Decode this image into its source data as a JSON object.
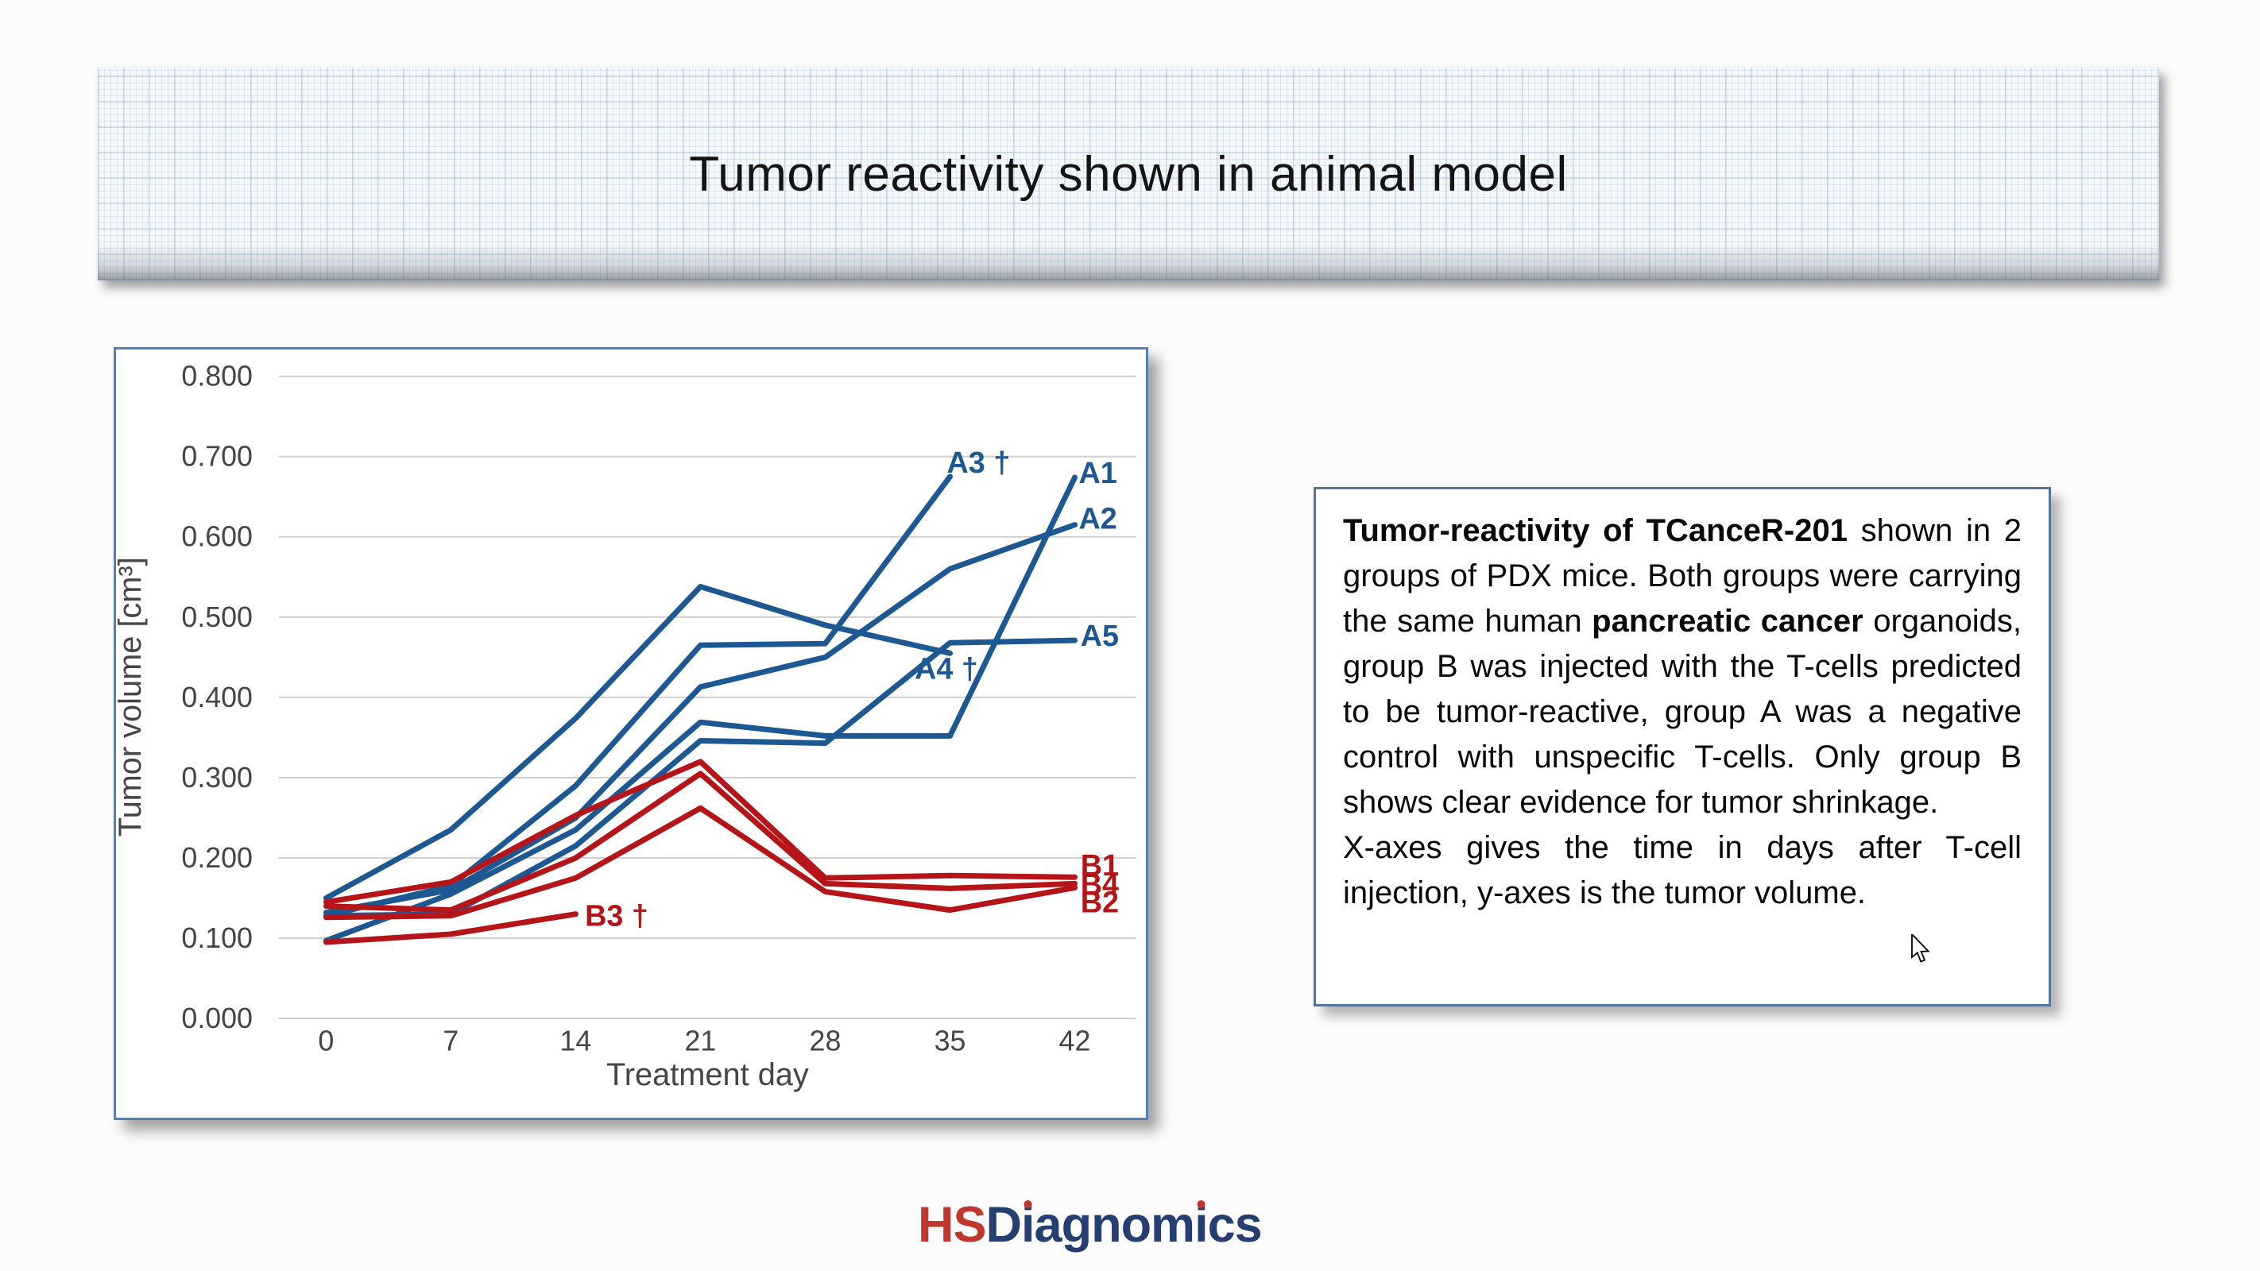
{
  "slide": {
    "title": "Tumor reactivity shown in animal model"
  },
  "description": {
    "paragraphs": [
      [
        {
          "t": "Tumor-reactivity of TCanceR-201",
          "b": true
        },
        {
          "t": " shown in 2 groups of PDX mice. Both groups were carrying the same human ",
          "b": false
        },
        {
          "t": "pancreatic cancer",
          "b": true
        },
        {
          "t": " organoids, group B was injected with the T-cells predicted to be tumor-reactive, group A was a negative control with unspecific T-cells. Only group B shows clear evidence for tumor shrinkage.",
          "b": false
        }
      ],
      [
        {
          "t": "X-axes gives the time in days after T-cell injection, y-axes is the tumor volume.",
          "b": false
        }
      ]
    ]
  },
  "logo": {
    "prefix": "HS",
    "rest": "Diagnomics",
    "prefix_color": "#c0372f",
    "rest_color": "#263e72",
    "dot_color": "#c0372f"
  },
  "chart_data": {
    "type": "line",
    "title": "",
    "xlabel": "Treatment day",
    "ylabel": "Tumor volume [cm³]",
    "xticks": [
      0,
      7,
      14,
      21,
      28,
      35,
      42
    ],
    "yticks": [
      "0.000",
      "0.100",
      "0.200",
      "0.300",
      "0.400",
      "0.500",
      "0.600",
      "0.700",
      "0.800"
    ],
    "xlim": [
      -2.7,
      46
    ],
    "ylim": [
      0.0,
      0.8
    ],
    "grid": "horizontal",
    "legend_position": "inline-labels",
    "group_colors": {
      "A": "#1e5892",
      "B": "#b51419"
    },
    "tick_color": "#454545",
    "grid_color": "#d0d0d0",
    "series": [
      {
        "name": "A1",
        "group": "A",
        "label": "A1",
        "label_at": [
          43.3,
          0.68
        ],
        "points": [
          [
            0,
            0.097
          ],
          [
            7,
            0.155
          ],
          [
            14,
            0.235
          ],
          [
            21,
            0.369
          ],
          [
            28,
            0.352
          ],
          [
            35,
            0.352
          ],
          [
            42,
            0.674
          ]
        ]
      },
      {
        "name": "A2",
        "group": "A",
        "label": "A2",
        "label_at": [
          43.3,
          0.623
        ],
        "points": [
          [
            0,
            0.132
          ],
          [
            7,
            0.16
          ],
          [
            14,
            0.25
          ],
          [
            21,
            0.413
          ],
          [
            28,
            0.45
          ],
          [
            35,
            0.56
          ],
          [
            42,
            0.615
          ]
        ]
      },
      {
        "name": "A3",
        "group": "A",
        "label": "A3 †",
        "label_at": [
          36.6,
          0.693
        ],
        "deceased": true,
        "points": [
          [
            0,
            0.128
          ],
          [
            7,
            0.165
          ],
          [
            14,
            0.29
          ],
          [
            21,
            0.465
          ],
          [
            28,
            0.467
          ],
          [
            35,
            0.675
          ]
        ]
      },
      {
        "name": "A4",
        "group": "A",
        "label": "A4 †",
        "label_at": [
          34.8,
          0.436
        ],
        "deceased": true,
        "points": [
          [
            0,
            0.15
          ],
          [
            7,
            0.235
          ],
          [
            14,
            0.374
          ],
          [
            21,
            0.538
          ],
          [
            28,
            0.49
          ],
          [
            35,
            0.455
          ]
        ]
      },
      {
        "name": "A5",
        "group": "A",
        "label": "A5",
        "label_at": [
          43.4,
          0.477
        ],
        "points": [
          [
            0,
            0.128
          ],
          [
            7,
            0.13
          ],
          [
            14,
            0.215
          ],
          [
            21,
            0.346
          ],
          [
            28,
            0.343
          ],
          [
            35,
            0.468
          ],
          [
            42,
            0.471
          ]
        ]
      },
      {
        "name": "B1",
        "group": "B",
        "label": "B1",
        "label_at": [
          43.4,
          0.191
        ],
        "points": [
          [
            0,
            0.145
          ],
          [
            7,
            0.17
          ],
          [
            14,
            0.253
          ],
          [
            21,
            0.32
          ],
          [
            28,
            0.175
          ],
          [
            35,
            0.178
          ],
          [
            42,
            0.176
          ]
        ]
      },
      {
        "name": "B4",
        "group": "B",
        "label": "B4",
        "label_at": [
          43.4,
          0.167
        ],
        "points": [
          [
            0,
            0.14
          ],
          [
            7,
            0.135
          ],
          [
            14,
            0.2
          ],
          [
            21,
            0.305
          ],
          [
            28,
            0.168
          ],
          [
            35,
            0.162
          ],
          [
            42,
            0.168
          ]
        ]
      },
      {
        "name": "B2",
        "group": "B",
        "label": "B2",
        "label_at": [
          43.4,
          0.145
        ],
        "points": [
          [
            0,
            0.126
          ],
          [
            7,
            0.128
          ],
          [
            14,
            0.175
          ],
          [
            21,
            0.262
          ],
          [
            28,
            0.158
          ],
          [
            35,
            0.135
          ],
          [
            42,
            0.163
          ]
        ]
      },
      {
        "name": "B3",
        "group": "B",
        "label": "B3 †",
        "label_at": [
          16.3,
          0.128
        ],
        "deceased": true,
        "points": [
          [
            0,
            0.095
          ],
          [
            7,
            0.105
          ],
          [
            14,
            0.13
          ]
        ]
      }
    ]
  }
}
